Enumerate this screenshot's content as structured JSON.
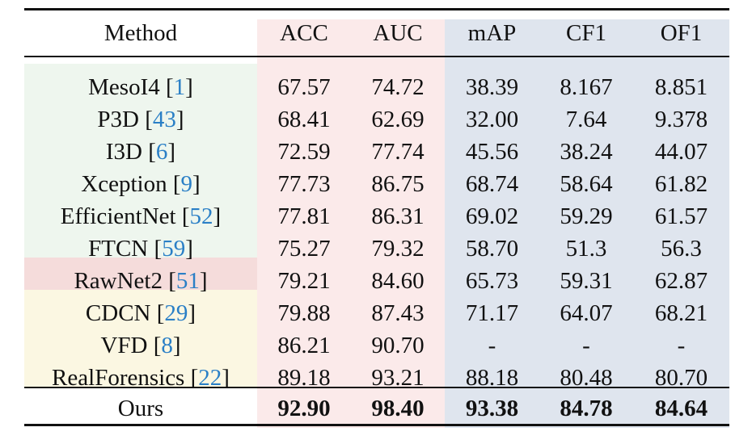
{
  "table": {
    "columns": [
      "Method",
      "ACC",
      "AUC",
      "mAP",
      "CF1",
      "OF1"
    ],
    "rows": [
      {
        "method": "MesoI4",
        "ref": "1",
        "group": "green",
        "values": [
          "67.57",
          "74.72",
          "38.39",
          "8.167",
          "8.851"
        ]
      },
      {
        "method": "P3D",
        "ref": "43",
        "group": "green",
        "values": [
          "68.41",
          "62.69",
          "32.00",
          "7.64",
          "9.378"
        ]
      },
      {
        "method": "I3D",
        "ref": "6",
        "group": "green",
        "values": [
          "72.59",
          "77.74",
          "45.56",
          "38.24",
          "44.07"
        ]
      },
      {
        "method": "Xception",
        "ref": "9",
        "group": "green",
        "values": [
          "77.73",
          "86.75",
          "68.74",
          "58.64",
          "61.82"
        ]
      },
      {
        "method": "EfficientNet",
        "ref": "52",
        "group": "green",
        "values": [
          "77.81",
          "86.31",
          "69.02",
          "59.29",
          "61.57"
        ]
      },
      {
        "method": "FTCN",
        "ref": "59",
        "group": "green",
        "values": [
          "75.27",
          "79.32",
          "58.70",
          "51.3",
          "56.3"
        ]
      },
      {
        "method": "RawNet2",
        "ref": "51",
        "group": "red",
        "values": [
          "79.21",
          "84.60",
          "65.73",
          "59.31",
          "62.87"
        ]
      },
      {
        "method": "CDCN",
        "ref": "29",
        "group": "yellow",
        "values": [
          "79.88",
          "87.43",
          "71.17",
          "64.07",
          "68.21"
        ]
      },
      {
        "method": "VFD",
        "ref": "8",
        "group": "yellow",
        "values": [
          "86.21",
          "90.70",
          "-",
          "-",
          "-"
        ]
      },
      {
        "method": "RealForensics",
        "ref": "22",
        "group": "yellow",
        "values": [
          "89.18",
          "93.21",
          "88.18",
          "80.48",
          "80.70"
        ]
      }
    ],
    "ours": {
      "method": "Ours",
      "values": [
        "92.90",
        "98.40",
        "93.38",
        "84.78",
        "84.64"
      ]
    }
  },
  "colors": {
    "text": "#111111",
    "citation": "#2a7fc6",
    "acc_auc_bg": "#fbeaea",
    "map_f1_bg": "#dfe5ee",
    "green_group_bg": "#eef6ee",
    "red_group_bg": "#f5dcdb",
    "yellow_group_bg": "#fbf7e2"
  }
}
